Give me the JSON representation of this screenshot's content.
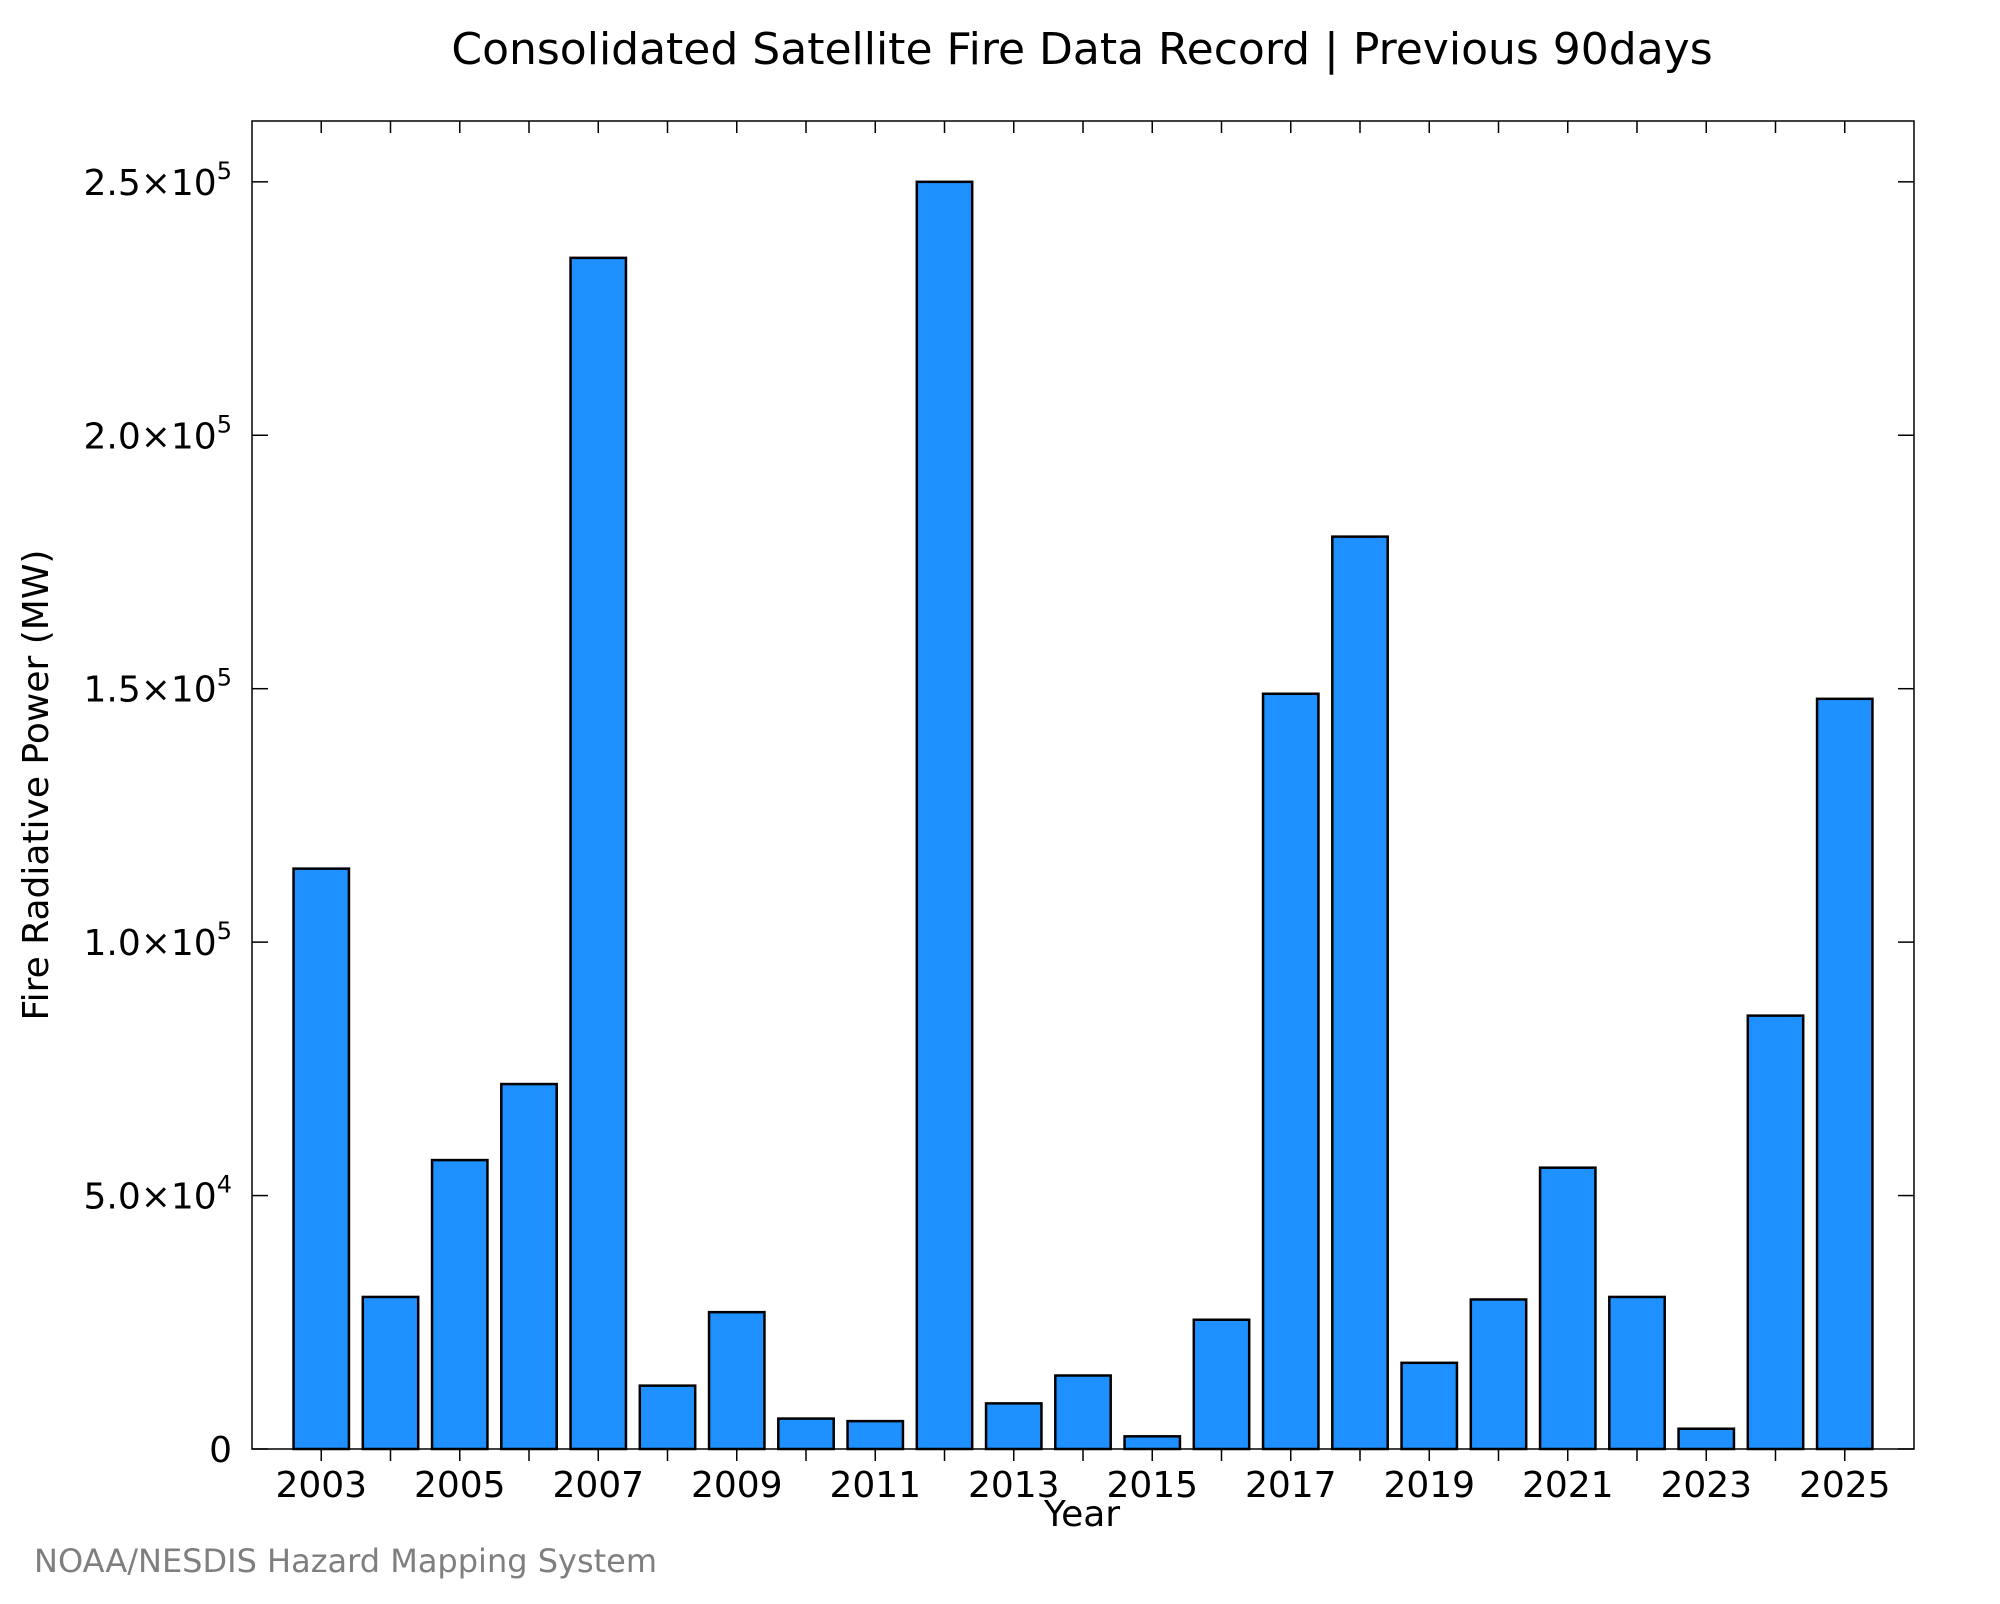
{
  "chart_data": {
    "type": "bar",
    "title": "Consolidated Satellite Fire Data Record | Previous 90days",
    "xlabel": "Year",
    "ylabel": "Fire Radiative Power (MW)",
    "source": "NOAA/NESDIS Hazard Mapping System",
    "categories": [
      2003,
      2004,
      2005,
      2006,
      2007,
      2008,
      2009,
      2010,
      2011,
      2012,
      2013,
      2014,
      2015,
      2016,
      2017,
      2018,
      2019,
      2020,
      2021,
      2022,
      2023,
      2024,
      2025
    ],
    "values": [
      114500,
      30000,
      57000,
      72000,
      235000,
      12500,
      27000,
      6000,
      5500,
      250000,
      9000,
      14500,
      2500,
      25500,
      149000,
      180000,
      17000,
      29500,
      55500,
      30000,
      4000,
      85500,
      148000
    ],
    "xlim": [
      2002,
      2026
    ],
    "ylim": [
      0,
      262000
    ],
    "xticks": [
      2003,
      2005,
      2007,
      2009,
      2011,
      2013,
      2015,
      2017,
      2019,
      2021,
      2023,
      2025
    ],
    "xtick_labels": [
      "2003",
      "2005",
      "2007",
      "2009",
      "2011",
      "2013",
      "2015",
      "2017",
      "2019",
      "2021",
      "2023",
      "2025"
    ],
    "yticks": [
      {
        "value": 0,
        "mantissa": "0",
        "exponent": ""
      },
      {
        "value": 50000,
        "mantissa": "5.0×10",
        "exponent": "4"
      },
      {
        "value": 100000,
        "mantissa": "1.0×10",
        "exponent": "5"
      },
      {
        "value": 150000,
        "mantissa": "1.5×10",
        "exponent": "5"
      },
      {
        "value": 200000,
        "mantissa": "2.0×10",
        "exponent": "5"
      },
      {
        "value": 250000,
        "mantissa": "2.5×10",
        "exponent": "5"
      }
    ],
    "bar_color": "#1E90FF",
    "bar_edge_color": "#000000",
    "grid": false,
    "legend": "none"
  }
}
